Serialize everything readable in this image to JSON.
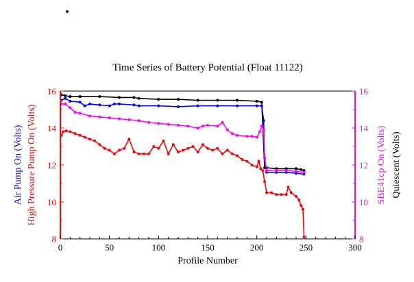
{
  "chart_data": {
    "type": "line",
    "title": "Time Series of Battery Potential (Float 11122)",
    "xlabel": "Profile Number",
    "xlim": [
      0,
      300
    ],
    "xticks": [
      0,
      50,
      100,
      150,
      200,
      250,
      300
    ],
    "ylim": [
      8,
      16
    ],
    "yticks": [
      8,
      10,
      12,
      14,
      16
    ],
    "left_axis_labels": [
      {
        "text": "Air Pump On (Volts)",
        "color": "#0000ff"
      },
      {
        "text": "High Pressure Pump On (Volts)",
        "color": "#ff0000"
      }
    ],
    "right_axis_labels": [
      {
        "text": "SBE41cp On (Volts)",
        "color": "#ff00ff"
      },
      {
        "text": "Quiescent (Volts)",
        "color": "#000000"
      }
    ],
    "left_axis_color": "#ff0000",
    "right_axis_color": "#ff00ff",
    "grid": false,
    "series": [
      {
        "name": "Quiescent (Volts)",
        "color": "#000000",
        "x": [
          1,
          5,
          10,
          20,
          40,
          60,
          75,
          80,
          100,
          120,
          140,
          160,
          180,
          200,
          205,
          208,
          210,
          220,
          230,
          240,
          245,
          248
        ],
        "y": [
          15.8,
          15.75,
          15.7,
          15.7,
          15.7,
          15.65,
          15.65,
          15.6,
          15.55,
          15.55,
          15.5,
          15.5,
          15.5,
          15.45,
          15.4,
          11.85,
          11.85,
          11.8,
          11.8,
          11.8,
          11.75,
          11.7
        ]
      },
      {
        "name": "Air Pump On (Volts)",
        "color": "#0000ff",
        "x": [
          1,
          5,
          10,
          20,
          25,
          30,
          40,
          50,
          55,
          60,
          75,
          80,
          100,
          120,
          140,
          160,
          180,
          200,
          205,
          207,
          208,
          210,
          220,
          230,
          240,
          248
        ],
        "y": [
          15.5,
          15.6,
          15.45,
          15.4,
          15.2,
          15.3,
          15.25,
          15.2,
          15.3,
          15.3,
          15.25,
          15.2,
          15.2,
          15.15,
          15.2,
          15.2,
          15.2,
          15.2,
          15.2,
          14.4,
          12.4,
          11.6,
          11.6,
          11.6,
          11.55,
          11.5
        ]
      },
      {
        "name": "SBE41cp On (Volts)",
        "color": "#ff00ff",
        "x": [
          1,
          5,
          10,
          15,
          20,
          30,
          40,
          50,
          60,
          70,
          80,
          90,
          100,
          110,
          120,
          130,
          140,
          145,
          150,
          160,
          165,
          170,
          175,
          180,
          190,
          195,
          200,
          203,
          205,
          207,
          208,
          210,
          220,
          230,
          240,
          248
        ],
        "y": [
          15.3,
          15.3,
          15.1,
          14.85,
          14.8,
          14.65,
          14.6,
          14.55,
          14.5,
          14.45,
          14.4,
          14.3,
          14.25,
          14.2,
          14.15,
          14.1,
          14.0,
          14.1,
          14.15,
          14.1,
          14.3,
          13.9,
          13.7,
          13.6,
          13.55,
          13.55,
          13.5,
          13.8,
          14.1,
          13.9,
          12.4,
          11.7,
          11.7,
          11.7,
          11.65,
          11.6
        ]
      },
      {
        "name": "High Pressure Pump On (Volts)",
        "color": "#ff0000",
        "x": [
          1,
          3,
          6,
          10,
          15,
          20,
          25,
          30,
          35,
          40,
          45,
          50,
          55,
          60,
          65,
          70,
          75,
          80,
          85,
          90,
          95,
          100,
          105,
          110,
          115,
          120,
          125,
          130,
          135,
          140,
          145,
          150,
          155,
          160,
          165,
          170,
          175,
          180,
          185,
          190,
          195,
          200,
          202,
          204,
          206,
          208,
          210,
          215,
          220,
          225,
          230,
          232,
          235,
          240,
          243,
          245,
          247,
          248
        ],
        "y": [
          13.6,
          13.8,
          13.85,
          13.8,
          13.7,
          13.6,
          13.5,
          13.4,
          13.3,
          13.1,
          12.9,
          12.8,
          12.6,
          12.8,
          12.9,
          13.4,
          12.7,
          12.6,
          12.6,
          12.6,
          13.0,
          12.9,
          13.3,
          12.6,
          13.1,
          12.7,
          12.8,
          12.9,
          13.0,
          12.7,
          13.1,
          12.9,
          12.8,
          12.9,
          12.6,
          12.8,
          12.6,
          12.5,
          12.3,
          12.2,
          12.0,
          11.9,
          12.2,
          11.8,
          11.7,
          11.1,
          10.5,
          10.5,
          10.4,
          10.4,
          10.4,
          10.8,
          10.5,
          10.3,
          10.1,
          9.8,
          9.6,
          8.1
        ]
      }
    ]
  }
}
